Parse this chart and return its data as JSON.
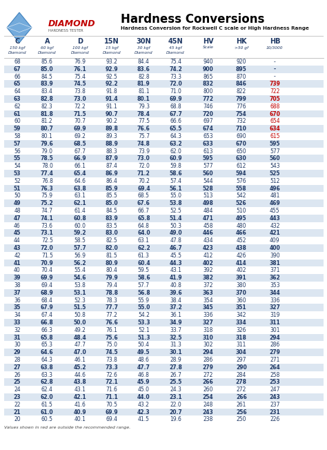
{
  "title": "Hardness Conversions",
  "subtitle": "Hardness Conversion for Rockwell C scale or High Hardness Range",
  "col_headers": [
    "C",
    "A",
    "D",
    "15N",
    "30N",
    "45N",
    "HV",
    "HK",
    "HB"
  ],
  "col_sub1": [
    "150 kgf",
    "60 kgf",
    "100 kgf",
    "15 kgf",
    "30 kgf",
    "45 kgf",
    "Scale",
    ">50 gf",
    "10/3000"
  ],
  "col_sub2": [
    "Diamond",
    "Diamond",
    "Diamond",
    "Diamond",
    "Diamond",
    "Diamond",
    "",
    "",
    ""
  ],
  "footer": "Values shown in red are outside the recommended range.",
  "rows": [
    [
      68,
      85.6,
      76.9,
      93.2,
      84.4,
      75.4,
      940,
      920,
      "-"
    ],
    [
      67,
      85.0,
      76.1,
      92.9,
      83.6,
      74.2,
      900,
      895,
      "-"
    ],
    [
      66,
      84.5,
      75.4,
      92.5,
      82.8,
      73.3,
      865,
      870,
      "-"
    ],
    [
      65,
      83.9,
      74.5,
      92.2,
      81.9,
      72.0,
      832,
      846,
      739
    ],
    [
      64,
      83.4,
      73.8,
      91.8,
      81.1,
      71.0,
      800,
      822,
      722
    ],
    [
      63,
      82.8,
      73.0,
      91.4,
      80.1,
      69.9,
      772,
      799,
      705
    ],
    [
      62,
      82.3,
      72.2,
      91.1,
      79.3,
      68.8,
      746,
      776,
      688
    ],
    [
      61,
      81.8,
      71.5,
      90.7,
      78.4,
      67.7,
      720,
      754,
      670
    ],
    [
      60,
      81.2,
      70.7,
      90.2,
      77.5,
      66.6,
      697,
      732,
      654
    ],
    [
      59,
      80.7,
      69.9,
      89.8,
      76.6,
      65.5,
      674,
      710,
      634
    ],
    [
      58,
      80.1,
      69.2,
      89.3,
      75.7,
      64.3,
      653,
      690,
      615
    ],
    [
      57,
      79.6,
      68.5,
      88.9,
      74.8,
      63.2,
      633,
      670,
      595
    ],
    [
      56,
      79.0,
      67.7,
      88.3,
      73.9,
      62.0,
      613,
      650,
      577
    ],
    [
      55,
      78.5,
      66.9,
      87.9,
      73.0,
      60.9,
      595,
      630,
      560
    ],
    [
      54,
      78.0,
      66.1,
      87.4,
      72.0,
      59.8,
      577,
      612,
      543
    ],
    [
      53,
      77.4,
      65.4,
      86.9,
      71.2,
      58.6,
      560,
      594,
      525
    ],
    [
      52,
      76.8,
      64.6,
      86.4,
      70.2,
      57.4,
      544,
      576,
      512
    ],
    [
      51,
      76.3,
      63.8,
      85.9,
      69.4,
      56.1,
      528,
      558,
      496
    ],
    [
      50,
      75.9,
      63.1,
      85.5,
      68.5,
      55.0,
      513,
      542,
      481
    ],
    [
      49,
      75.2,
      62.1,
      85.0,
      67.6,
      53.8,
      498,
      526,
      469
    ],
    [
      48,
      74.7,
      61.4,
      84.5,
      66.7,
      52.5,
      484,
      510,
      455
    ],
    [
      47,
      74.1,
      60.8,
      83.9,
      65.8,
      51.4,
      471,
      495,
      443
    ],
    [
      46,
      73.6,
      60.0,
      83.5,
      64.8,
      50.3,
      458,
      480,
      432
    ],
    [
      45,
      73.1,
      59.2,
      83.0,
      64.0,
      49.0,
      446,
      466,
      421
    ],
    [
      44,
      72.5,
      58.5,
      82.5,
      63.1,
      47.8,
      434,
      452,
      409
    ],
    [
      43,
      72.0,
      57.7,
      82.0,
      62.2,
      46.7,
      423,
      438,
      400
    ],
    [
      42,
      71.5,
      56.9,
      81.5,
      61.3,
      45.5,
      412,
      426,
      390
    ],
    [
      41,
      70.9,
      56.2,
      80.9,
      60.4,
      44.3,
      402,
      414,
      381
    ],
    [
      40,
      70.4,
      55.4,
      80.4,
      59.5,
      43.1,
      392,
      402,
      371
    ],
    [
      39,
      69.9,
      54.6,
      79.9,
      58.6,
      41.9,
      382,
      391,
      362
    ],
    [
      38,
      69.4,
      53.8,
      79.4,
      57.7,
      40.8,
      372,
      380,
      353
    ],
    [
      37,
      68.9,
      53.1,
      78.8,
      56.8,
      39.6,
      363,
      370,
      344
    ],
    [
      36,
      68.4,
      52.3,
      78.3,
      55.9,
      38.4,
      354,
      360,
      336
    ],
    [
      35,
      67.9,
      51.5,
      77.7,
      55.0,
      37.2,
      345,
      351,
      327
    ],
    [
      34,
      67.4,
      50.8,
      77.2,
      54.2,
      36.1,
      336,
      342,
      319
    ],
    [
      33,
      66.8,
      50.0,
      76.6,
      53.3,
      34.9,
      327,
      334,
      311
    ],
    [
      32,
      66.3,
      49.2,
      76.1,
      52.1,
      33.7,
      318,
      326,
      301
    ],
    [
      31,
      65.8,
      48.4,
      75.6,
      51.3,
      32.5,
      310,
      318,
      294
    ],
    [
      30,
      65.3,
      47.7,
      75.0,
      50.4,
      31.3,
      302,
      311,
      286
    ],
    [
      29,
      64.6,
      47.0,
      74.5,
      49.5,
      30.1,
      294,
      304,
      279
    ],
    [
      28,
      64.3,
      46.1,
      73.8,
      48.6,
      28.9,
      286,
      297,
      271
    ],
    [
      27,
      63.8,
      45.2,
      73.3,
      47.7,
      27.8,
      279,
      290,
      264
    ],
    [
      26,
      63.3,
      44.6,
      72.6,
      46.8,
      26.7,
      272,
      284,
      258
    ],
    [
      25,
      62.8,
      43.8,
      72.1,
      45.9,
      25.5,
      266,
      278,
      253
    ],
    [
      24,
      62.4,
      43.1,
      71.6,
      45.0,
      24.3,
      260,
      272,
      247
    ],
    [
      23,
      62.0,
      42.1,
      71.1,
      44.0,
      23.1,
      254,
      266,
      243
    ],
    [
      22,
      61.5,
      41.6,
      70.5,
      43.2,
      22.0,
      248,
      261,
      237
    ],
    [
      21,
      61.0,
      40.9,
      69.9,
      42.3,
      20.7,
      243,
      256,
      231
    ],
    [
      20,
      60.5,
      40.1,
      69.4,
      41.5,
      19.6,
      238,
      250,
      226
    ]
  ],
  "red_hb_rows": [
    3,
    4,
    5,
    6,
    7,
    8,
    9,
    10
  ],
  "alt_row_color": "#dce6f1",
  "normal_row_color": "#ffffff",
  "red_color": "#c00000",
  "text_color": "#1f3864",
  "logo_diamond_color": "#4472c4",
  "logo_text_color": "#c00000",
  "title_color": "#000000",
  "subtitle_color": "#1a1a1a"
}
